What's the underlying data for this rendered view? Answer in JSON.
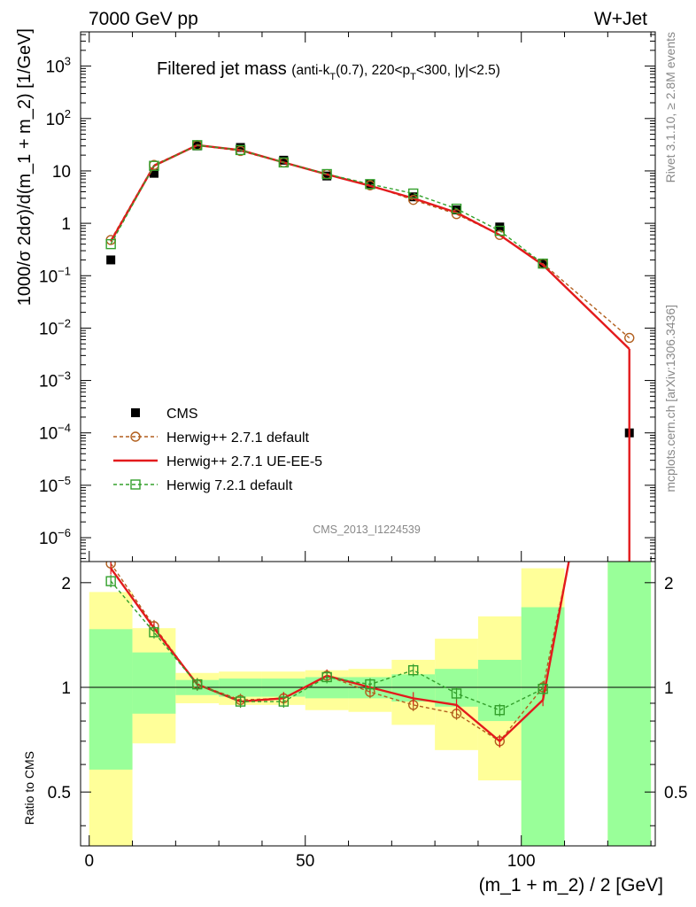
{
  "header": {
    "left": "7000 GeV pp",
    "right": "W+Jet"
  },
  "title_main": "Filtered jet mass",
  "title_cut": {
    "p1": "(anti-k",
    "s1": "T",
    "p2": "(0.7), 220<p",
    "s2": "T",
    "p3": "<300, |y|<2.5)"
  },
  "ylabel": "1000/σ 2dσ)/d(m_1 + m_2) [1/GeV]",
  "ratio_ylabel": "Ratio to CMS",
  "xlabel": "(m_1 + m_2) / 2 [GeV]",
  "side_rivet": "Rivet 3.1.10, ≥ 2.8M events",
  "side_mcplots": "mcplots.cern.ch [arXiv:1306.3436]",
  "analysis_id": "CMS_2013_I1224539",
  "colors": {
    "data": "#000000",
    "herwig271_default": "#b25f1e",
    "herwig271_ueee5": "#e31a1c",
    "herwig721_default": "#33a02c",
    "band_inner": "#99ff99",
    "band_outer": "#ffff99"
  },
  "chart_data": [
    {
      "type": "scatter",
      "panel": "main",
      "ylog": true,
      "xlim": [
        -2,
        131
      ],
      "ylim": [
        3.5e-07,
        4500
      ],
      "yticks": [
        {
          "v": 1e-06,
          "base": "10",
          "exp": "−6"
        },
        {
          "v": 1e-05,
          "base": "10",
          "exp": "−5"
        },
        {
          "v": 0.0001,
          "base": "10",
          "exp": "−4"
        },
        {
          "v": 0.001,
          "base": "10",
          "exp": "−3"
        },
        {
          "v": 0.01,
          "base": "10",
          "exp": "−2"
        },
        {
          "v": 0.1,
          "base": "10",
          "exp": "−1"
        },
        {
          "v": 1,
          "label": "1"
        },
        {
          "v": 10,
          "label": "10"
        },
        {
          "v": 100,
          "base": "10",
          "exp": "2"
        },
        {
          "v": 1000,
          "base": "10",
          "exp": "3"
        }
      ],
      "legend_position": "lower-left",
      "series": [
        {
          "name": "CMS",
          "style": "data",
          "x": [
            5,
            15,
            25,
            35,
            45,
            55,
            65,
            75,
            85,
            95,
            105,
            125
          ],
          "y": [
            0.2,
            9.0,
            30,
            28,
            16,
            8.0,
            5.5,
            3.2,
            1.8,
            0.85,
            0.17,
            0.0001
          ]
        },
        {
          "name": "Herwig++ 2.7.1 default",
          "style": "circle-dashed",
          "x": [
            5,
            15,
            25,
            35,
            45,
            55,
            65,
            75,
            85,
            95,
            105,
            125
          ],
          "y": [
            0.48,
            13,
            31,
            24,
            14.5,
            8.7,
            5.3,
            2.8,
            1.5,
            0.6,
            0.17,
            0.0065
          ]
        },
        {
          "name": "Herwig++ 2.7.1 UE-EE-5",
          "style": "solid",
          "x": [
            5,
            15,
            25,
            35,
            45,
            55,
            65,
            75,
            85,
            95,
            105,
            125
          ],
          "y": [
            0.45,
            12.5,
            31,
            25,
            14.5,
            8.6,
            5.2,
            3.0,
            1.6,
            0.6,
            0.16,
            0.004
          ]
        },
        {
          "name": "Herwig 7.2.1 default",
          "style": "square-dashed",
          "x": [
            5,
            15,
            25,
            35,
            45,
            55,
            65,
            75,
            85,
            95,
            105,
            125
          ],
          "y": [
            0.4,
            12.5,
            31,
            25,
            14.5,
            8.7,
            5.6,
            3.7,
            1.9,
            0.72,
            0.17,
            null
          ]
        }
      ]
    },
    {
      "type": "line",
      "panel": "ratio",
      "xlim": [
        -2,
        131
      ],
      "ylim": [
        0.35,
        2.3
      ],
      "ylog": true,
      "yticks": [
        0.5,
        1,
        2
      ],
      "xticks": [
        0,
        50,
        100
      ],
      "bands": [
        {
          "x0": 0,
          "x1": 10,
          "inner": [
            0.58,
            1.47
          ],
          "outer": [
            0.35,
            1.88
          ]
        },
        {
          "x0": 10,
          "x1": 20,
          "inner": [
            0.84,
            1.26
          ],
          "outer": [
            0.69,
            1.48
          ]
        },
        {
          "x0": 20,
          "x1": 30,
          "inner": [
            0.95,
            1.05
          ],
          "outer": [
            0.9,
            1.1
          ]
        },
        {
          "x0": 30,
          "x1": 40,
          "inner": [
            0.94,
            1.06
          ],
          "outer": [
            0.89,
            1.11
          ]
        },
        {
          "x0": 40,
          "x1": 50,
          "inner": [
            0.94,
            1.06
          ],
          "outer": [
            0.89,
            1.11
          ]
        },
        {
          "x0": 50,
          "x1": 60,
          "inner": [
            0.93,
            1.07
          ],
          "outer": [
            0.86,
            1.12
          ]
        },
        {
          "x0": 60,
          "x1": 70,
          "inner": [
            0.93,
            1.07
          ],
          "outer": [
            0.85,
            1.13
          ]
        },
        {
          "x0": 70,
          "x1": 80,
          "inner": [
            0.91,
            1.09
          ],
          "outer": [
            0.78,
            1.2
          ]
        },
        {
          "x0": 80,
          "x1": 90,
          "inner": [
            0.88,
            1.13
          ],
          "outer": [
            0.66,
            1.38
          ]
        },
        {
          "x0": 90,
          "x1": 100,
          "inner": [
            0.8,
            1.2
          ],
          "outer": [
            0.54,
            1.6
          ]
        },
        {
          "x0": 100,
          "x1": 110,
          "inner": [
            0.35,
            1.7
          ],
          "outer": [
            0.35,
            2.2
          ]
        },
        {
          "x0": 120,
          "x1": 130,
          "inner": [
            0.35,
            2.3
          ],
          "outer": [
            0.35,
            2.3
          ]
        }
      ],
      "series": [
        {
          "name": "Herwig++ 2.7.1 default",
          "style": "circle-dashed",
          "x": [
            5,
            15,
            25,
            35,
            45,
            55,
            65,
            75,
            85,
            95,
            105,
            111
          ],
          "y": [
            2.27,
            1.5,
            1.02,
            0.92,
            0.93,
            1.08,
            0.97,
            0.89,
            0.84,
            0.7,
            1.0,
            2.3
          ]
        },
        {
          "name": "Herwig++ 2.7.1 UE-EE-5",
          "style": "solid",
          "x": [
            5,
            15,
            25,
            35,
            45,
            55,
            65,
            75,
            85,
            95,
            105,
            111
          ],
          "y": [
            2.2,
            1.48,
            1.02,
            0.91,
            0.93,
            1.08,
            1.0,
            0.93,
            0.89,
            0.7,
            0.92,
            2.3
          ]
        },
        {
          "name": "Herwig 7.2.1 default",
          "style": "square-dashed",
          "x": [
            5,
            15,
            25,
            35,
            45,
            55,
            65,
            75,
            85,
            95,
            105
          ],
          "y": [
            2.02,
            1.44,
            1.02,
            0.91,
            0.91,
            1.07,
            1.02,
            1.12,
            0.96,
            0.86,
            0.99
          ]
        }
      ]
    }
  ]
}
